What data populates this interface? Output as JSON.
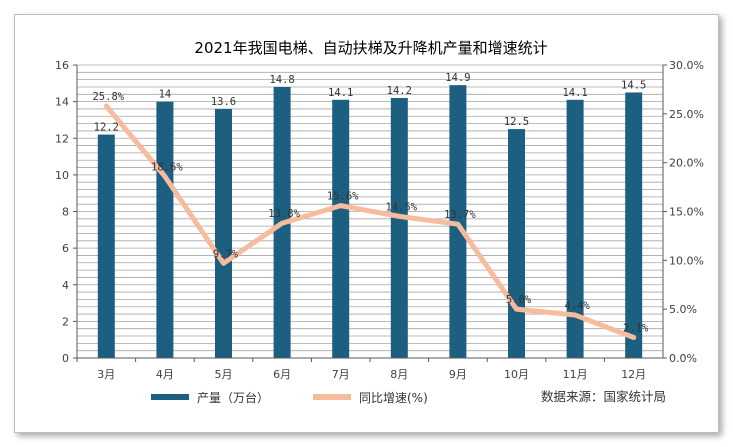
{
  "chart_data": {
    "type": "bar",
    "title": "2021年我国电梯、自动扶梯及升降机产量和增速统计",
    "categories": [
      "3月",
      "4月",
      "5月",
      "6月",
      "7月",
      "8月",
      "9月",
      "10月",
      "11月",
      "12月"
    ],
    "series": [
      {
        "name": "产量（万台）",
        "type": "bar",
        "axis": "left",
        "values": [
          12.2,
          14,
          13.6,
          14.8,
          14.1,
          14.2,
          14.9,
          12.5,
          14.1,
          14.5
        ],
        "labels": [
          "12.2",
          "14",
          "13.6",
          "14.8",
          "14.1",
          "14.2",
          "14.9",
          "12.5",
          "14.1",
          "14.5"
        ]
      },
      {
        "name": "同比增速(%)",
        "type": "line",
        "axis": "right",
        "values": [
          25.8,
          18.6,
          9.7,
          13.8,
          15.6,
          14.5,
          13.7,
          5.0,
          4.4,
          2.1
        ],
        "labels": [
          "25.8%",
          "18.6%",
          "9.7%",
          "13.8%",
          "15.6%",
          "14.5%",
          "13.7%",
          "5.0%",
          "4.4%",
          "2.1%"
        ]
      }
    ],
    "ylim_left": [
      0,
      16
    ],
    "yticks_left": [
      "0",
      "2",
      "4",
      "6",
      "8",
      "10",
      "12",
      "14",
      "16"
    ],
    "ylim_right": [
      0,
      30
    ],
    "yticks_right": [
      "0.0%",
      "5.0%",
      "10.0%",
      "15.0%",
      "20.0%",
      "25.0%",
      "30.0%"
    ],
    "grid": "horizontal-dense",
    "legend_position": "bottom-left",
    "source_note": "数据来源：国家统计局",
    "colors": {
      "bar": "#1d5f80",
      "line": "#f7bc9e",
      "grid": "#a6a6a6"
    }
  }
}
